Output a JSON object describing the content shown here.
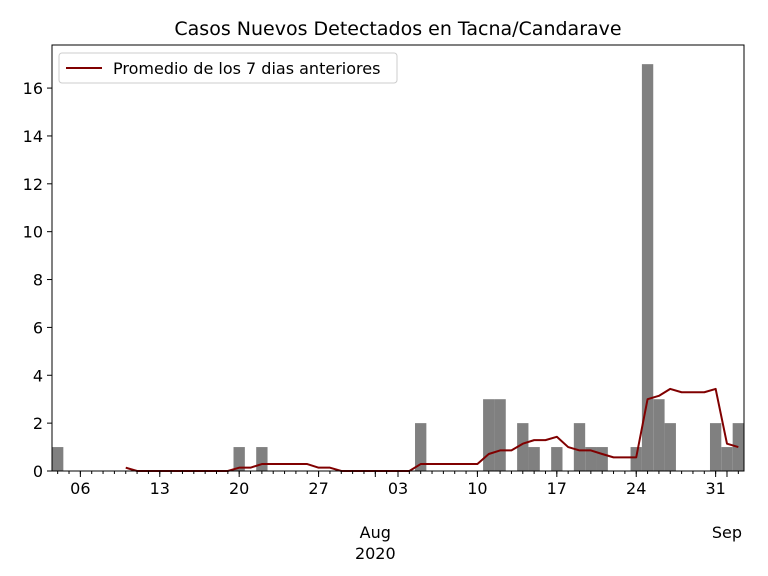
{
  "chart_data": {
    "type": "bar",
    "title": "Casos Nuevos Detectados en Tacna/Candarave",
    "xlabel": "",
    "ylabel": "",
    "ylim": [
      0,
      17.8
    ],
    "x_start": "2020-07-04",
    "x_end": "2020-09-02",
    "y_ticks": [
      0,
      2,
      4,
      6,
      8,
      10,
      12,
      14,
      16
    ],
    "x_ticks": [
      {
        "date": "2020-07-06",
        "label": "06"
      },
      {
        "date": "2020-07-13",
        "label": "13"
      },
      {
        "date": "2020-07-20",
        "label": "20"
      },
      {
        "date": "2020-07-27",
        "label": "27"
      },
      {
        "date": "2020-08-03",
        "label": "03"
      },
      {
        "date": "2020-08-10",
        "label": "10"
      },
      {
        "date": "2020-08-17",
        "label": "17"
      },
      {
        "date": "2020-08-24",
        "label": "24"
      },
      {
        "date": "2020-08-31",
        "label": "31"
      }
    ],
    "month_labels": [
      {
        "date": "2020-08-01",
        "text": "Aug",
        "year": "2020"
      },
      {
        "date": "2020-09-01",
        "text": "Sep",
        "year": ""
      }
    ],
    "bar_color": "#808080",
    "line_color": "#800000",
    "grid": false,
    "legend": {
      "position": "top-left",
      "entries": [
        "Promedio de los 7 dias anteriores"
      ]
    },
    "series": [
      {
        "name": "Casos nuevos",
        "kind": "bar",
        "points": [
          {
            "date": "2020-07-04",
            "value": 1
          },
          {
            "date": "2020-07-20",
            "value": 1
          },
          {
            "date": "2020-07-22",
            "value": 1
          },
          {
            "date": "2020-08-05",
            "value": 2
          },
          {
            "date": "2020-08-11",
            "value": 3
          },
          {
            "date": "2020-08-12",
            "value": 3
          },
          {
            "date": "2020-08-14",
            "value": 2
          },
          {
            "date": "2020-08-15",
            "value": 1
          },
          {
            "date": "2020-08-17",
            "value": 1
          },
          {
            "date": "2020-08-19",
            "value": 2
          },
          {
            "date": "2020-08-20",
            "value": 1
          },
          {
            "date": "2020-08-21",
            "value": 1
          },
          {
            "date": "2020-08-24",
            "value": 1
          },
          {
            "date": "2020-08-25",
            "value": 17
          },
          {
            "date": "2020-08-26",
            "value": 3
          },
          {
            "date": "2020-08-27",
            "value": 2
          },
          {
            "date": "2020-08-31",
            "value": 2
          },
          {
            "date": "2020-09-01",
            "value": 1
          },
          {
            "date": "2020-09-02",
            "value": 2
          }
        ]
      },
      {
        "name": "Promedio de los 7 dias anteriores",
        "kind": "line",
        "points": [
          {
            "date": "2020-07-10",
            "value": 0.14
          },
          {
            "date": "2020-07-11",
            "value": 0
          },
          {
            "date": "2020-07-19",
            "value": 0
          },
          {
            "date": "2020-07-20",
            "value": 0.14
          },
          {
            "date": "2020-07-21",
            "value": 0.14
          },
          {
            "date": "2020-07-22",
            "value": 0.29
          },
          {
            "date": "2020-07-26",
            "value": 0.29
          },
          {
            "date": "2020-07-27",
            "value": 0.14
          },
          {
            "date": "2020-07-28",
            "value": 0.14
          },
          {
            "date": "2020-07-29",
            "value": 0
          },
          {
            "date": "2020-08-04",
            "value": 0
          },
          {
            "date": "2020-08-05",
            "value": 0.29
          },
          {
            "date": "2020-08-10",
            "value": 0.29
          },
          {
            "date": "2020-08-11",
            "value": 0.71
          },
          {
            "date": "2020-08-12",
            "value": 0.86
          },
          {
            "date": "2020-08-13",
            "value": 0.86
          },
          {
            "date": "2020-08-14",
            "value": 1.14
          },
          {
            "date": "2020-08-15",
            "value": 1.29
          },
          {
            "date": "2020-08-16",
            "value": 1.29
          },
          {
            "date": "2020-08-17",
            "value": 1.43
          },
          {
            "date": "2020-08-18",
            "value": 1.0
          },
          {
            "date": "2020-08-19",
            "value": 0.86
          },
          {
            "date": "2020-08-20",
            "value": 0.86
          },
          {
            "date": "2020-08-21",
            "value": 0.71
          },
          {
            "date": "2020-08-22",
            "value": 0.57
          },
          {
            "date": "2020-08-24",
            "value": 0.57
          },
          {
            "date": "2020-08-25",
            "value": 3.0
          },
          {
            "date": "2020-08-26",
            "value": 3.14
          },
          {
            "date": "2020-08-27",
            "value": 3.43
          },
          {
            "date": "2020-08-28",
            "value": 3.29
          },
          {
            "date": "2020-08-30",
            "value": 3.29
          },
          {
            "date": "2020-08-31",
            "value": 3.43
          },
          {
            "date": "2020-09-01",
            "value": 1.14
          },
          {
            "date": "2020-09-02",
            "value": 1.0
          }
        ]
      }
    ]
  }
}
